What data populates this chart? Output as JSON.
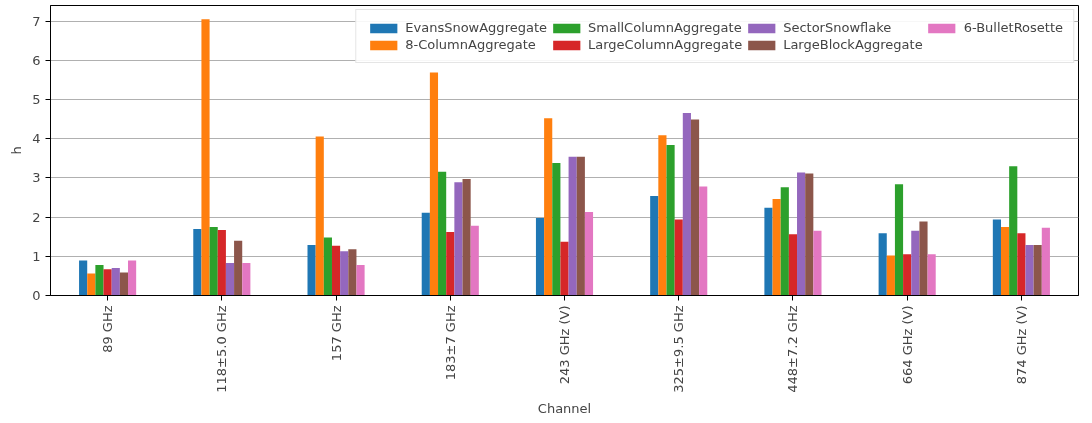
{
  "chart_data": {
    "type": "bar",
    "xlabel": "Channel",
    "ylabel": "h",
    "categories": [
      "89 GHz",
      "118±5.0 GHz",
      "157 GHz",
      "183±7 GHz",
      "243 GHz (V)",
      "325±9.5 GHz",
      "448±7.2 GHz",
      "664 GHz (V)",
      "874 GHz (V)"
    ],
    "series": [
      {
        "name": "EvansSnowAggregate",
        "color": "#1f77b4",
        "values": [
          0.89,
          1.7,
          1.29,
          2.11,
          1.98,
          2.54,
          2.24,
          1.59,
          1.94
        ]
      },
      {
        "name": "8-ColumnAggregate",
        "color": "#ff7f0e",
        "values": [
          0.56,
          7.05,
          4.06,
          5.69,
          4.52,
          4.09,
          2.46,
          1.02,
          1.75
        ]
      },
      {
        "name": "SmallColumnAggregate",
        "color": "#2ca02c",
        "values": [
          0.78,
          1.75,
          1.48,
          3.16,
          3.38,
          3.84,
          2.76,
          2.84,
          3.3
        ]
      },
      {
        "name": "LargeColumnAggregate",
        "color": "#d62728",
        "values": [
          0.67,
          1.67,
          1.27,
          1.62,
          1.37,
          1.94,
          1.56,
          1.05,
          1.59
        ]
      },
      {
        "name": "SectorSnowflake",
        "color": "#9467bd",
        "values": [
          0.7,
          0.83,
          1.13,
          2.89,
          3.54,
          4.66,
          3.14,
          1.65,
          1.29
        ]
      },
      {
        "name": "LargeBlockAggregate",
        "color": "#8c564b",
        "values": [
          0.59,
          1.4,
          1.18,
          2.97,
          3.54,
          4.49,
          3.11,
          1.89,
          1.29
        ]
      },
      {
        "name": "6-BulletRosette",
        "color": "#e377c2",
        "values": [
          0.89,
          0.83,
          0.78,
          1.78,
          2.13,
          2.78,
          1.65,
          1.05,
          1.73
        ]
      }
    ],
    "ylim": [
      0,
      7.4
    ],
    "yticks": [
      0,
      1,
      2,
      3,
      4,
      5,
      6,
      7
    ],
    "grid": "y",
    "legend": "top right"
  }
}
